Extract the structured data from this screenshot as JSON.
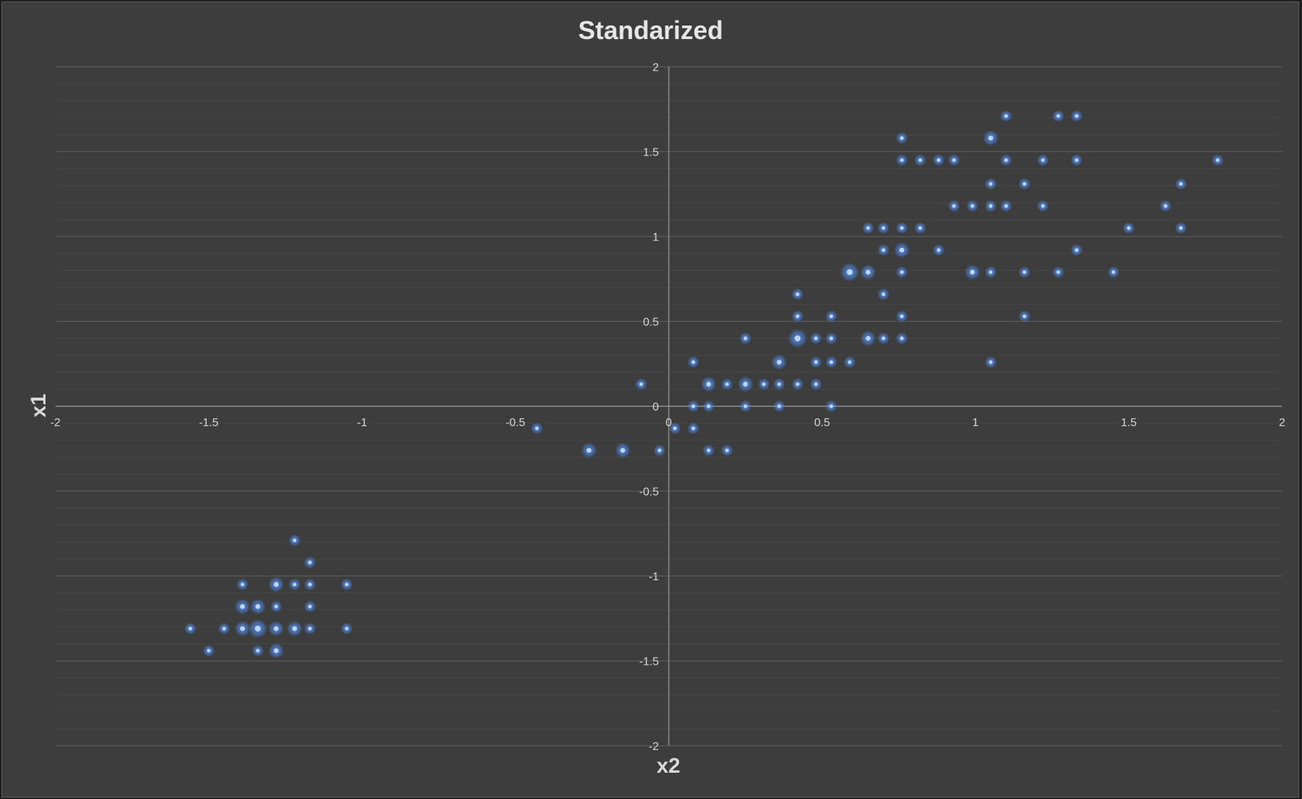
{
  "chart_data": {
    "type": "scatter",
    "title": "Standarized",
    "xlabel": "x2",
    "ylabel": "x1",
    "xlim": [
      -2,
      2
    ],
    "ylim": [
      -2,
      2
    ],
    "x_ticks": [
      -2,
      -1.5,
      -1,
      -0.5,
      0,
      0.5,
      1,
      1.5,
      2
    ],
    "y_ticks": [
      -2,
      -1.5,
      -1,
      -0.5,
      0,
      0.5,
      1,
      1.5,
      2
    ],
    "x_tick_labels": [
      "-2",
      "-1.5",
      "-1",
      "-0.5",
      "0",
      "0.5",
      "1",
      "1.5",
      "2"
    ],
    "y_tick_labels": [
      "-2",
      "-1.5",
      "-1",
      "-0.5",
      "0",
      "0.5",
      "1",
      "1.5",
      "2"
    ],
    "grid": true,
    "legend": "none",
    "marker_color": "#4f8ff7",
    "background_color": "#3d3d3d",
    "series": [
      {
        "points": [
          [
            -1.56,
            -1.31
          ],
          [
            -1.5,
            -1.44
          ],
          [
            -1.45,
            -1.31
          ],
          [
            -1.39,
            -1.31
          ],
          [
            -1.39,
            -1.18
          ],
          [
            -1.39,
            -1.05
          ],
          [
            -1.34,
            -1.31
          ],
          [
            -1.34,
            -1.18
          ],
          [
            -1.34,
            -1.44
          ],
          [
            -1.28,
            -1.31
          ],
          [
            -1.28,
            -1.18
          ],
          [
            -1.28,
            -1.05
          ],
          [
            -1.28,
            -1.44
          ],
          [
            -1.22,
            -1.31
          ],
          [
            -1.22,
            -1.05
          ],
          [
            -1.22,
            -0.79
          ],
          [
            -1.17,
            -1.31
          ],
          [
            -1.17,
            -1.18
          ],
          [
            -1.17,
            -1.05
          ],
          [
            -1.17,
            -0.92
          ],
          [
            -1.05,
            -1.31
          ],
          [
            -1.05,
            -1.05
          ],
          [
            -0.43,
            -0.13
          ],
          [
            -0.26,
            -0.26
          ],
          [
            -0.15,
            -0.26
          ],
          [
            -0.09,
            0.13
          ],
          [
            -0.03,
            -0.26
          ],
          [
            0.02,
            -0.13
          ],
          [
            0.08,
            0.26
          ],
          [
            0.08,
            0.0
          ],
          [
            0.08,
            -0.13
          ],
          [
            0.13,
            0.13
          ],
          [
            0.13,
            0.0
          ],
          [
            0.13,
            -0.26
          ],
          [
            0.19,
            0.13
          ],
          [
            0.19,
            -0.26
          ],
          [
            0.25,
            0.4
          ],
          [
            0.25,
            0.13
          ],
          [
            0.25,
            0.0
          ],
          [
            0.31,
            0.13
          ],
          [
            0.36,
            0.26
          ],
          [
            0.36,
            0.13
          ],
          [
            0.36,
            0.0
          ],
          [
            0.42,
            0.66
          ],
          [
            0.42,
            0.53
          ],
          [
            0.42,
            0.4
          ],
          [
            0.42,
            0.13
          ],
          [
            0.48,
            0.4
          ],
          [
            0.48,
            0.26
          ],
          [
            0.48,
            0.13
          ],
          [
            0.53,
            0.53
          ],
          [
            0.53,
            0.4
          ],
          [
            0.53,
            0.26
          ],
          [
            0.53,
            0.0
          ],
          [
            0.59,
            0.79
          ],
          [
            0.59,
            0.26
          ],
          [
            0.65,
            1.05
          ],
          [
            0.65,
            0.79
          ],
          [
            0.65,
            0.4
          ],
          [
            0.7,
            1.05
          ],
          [
            0.7,
            0.92
          ],
          [
            0.7,
            0.66
          ],
          [
            0.7,
            0.4
          ],
          [
            0.76,
            1.58
          ],
          [
            0.76,
            1.45
          ],
          [
            0.76,
            1.05
          ],
          [
            0.76,
            0.92
          ],
          [
            0.76,
            0.79
          ],
          [
            0.76,
            0.53
          ],
          [
            0.76,
            0.4
          ],
          [
            0.82,
            1.45
          ],
          [
            0.82,
            1.05
          ],
          [
            0.88,
            1.45
          ],
          [
            0.88,
            0.92
          ],
          [
            0.93,
            1.45
          ],
          [
            0.93,
            1.18
          ],
          [
            0.99,
            1.18
          ],
          [
            0.99,
            0.79
          ],
          [
            1.05,
            1.58
          ],
          [
            1.05,
            1.31
          ],
          [
            1.05,
            1.18
          ],
          [
            1.05,
            0.79
          ],
          [
            1.05,
            0.26
          ],
          [
            1.1,
            1.71
          ],
          [
            1.1,
            1.45
          ],
          [
            1.1,
            1.18
          ],
          [
            1.16,
            1.31
          ],
          [
            1.16,
            0.79
          ],
          [
            1.16,
            0.53
          ],
          [
            1.22,
            1.45
          ],
          [
            1.22,
            1.18
          ],
          [
            1.27,
            1.71
          ],
          [
            1.27,
            0.79
          ],
          [
            1.33,
            1.71
          ],
          [
            1.33,
            1.45
          ],
          [
            1.33,
            0.92
          ],
          [
            1.45,
            0.79
          ],
          [
            1.5,
            1.05
          ],
          [
            1.62,
            1.18
          ],
          [
            1.67,
            1.31
          ],
          [
            1.67,
            1.05
          ],
          [
            1.79,
            1.45
          ]
        ],
        "weights": [
          1,
          1,
          1,
          2,
          2,
          1,
          3,
          2,
          1,
          2,
          1,
          2,
          2,
          2,
          1,
          1,
          1,
          1,
          1,
          1,
          1,
          1,
          1,
          2,
          2,
          1,
          1,
          1,
          1,
          1,
          1,
          2,
          1,
          1,
          1,
          1,
          1,
          2,
          1,
          1,
          2,
          1,
          1,
          1,
          1,
          3,
          1,
          1,
          1,
          1,
          1,
          1,
          1,
          1,
          3,
          1,
          1,
          2,
          2,
          1,
          1,
          1,
          1,
          1,
          1,
          1,
          2,
          1,
          1,
          1,
          1,
          1,
          1,
          1,
          1,
          1,
          1,
          2,
          2,
          1,
          1,
          1,
          1,
          1,
          1,
          1,
          1,
          1,
          1,
          1,
          1,
          1,
          1,
          1,
          1,
          1,
          1,
          1,
          1,
          1,
          1,
          1
        ]
      }
    ]
  }
}
